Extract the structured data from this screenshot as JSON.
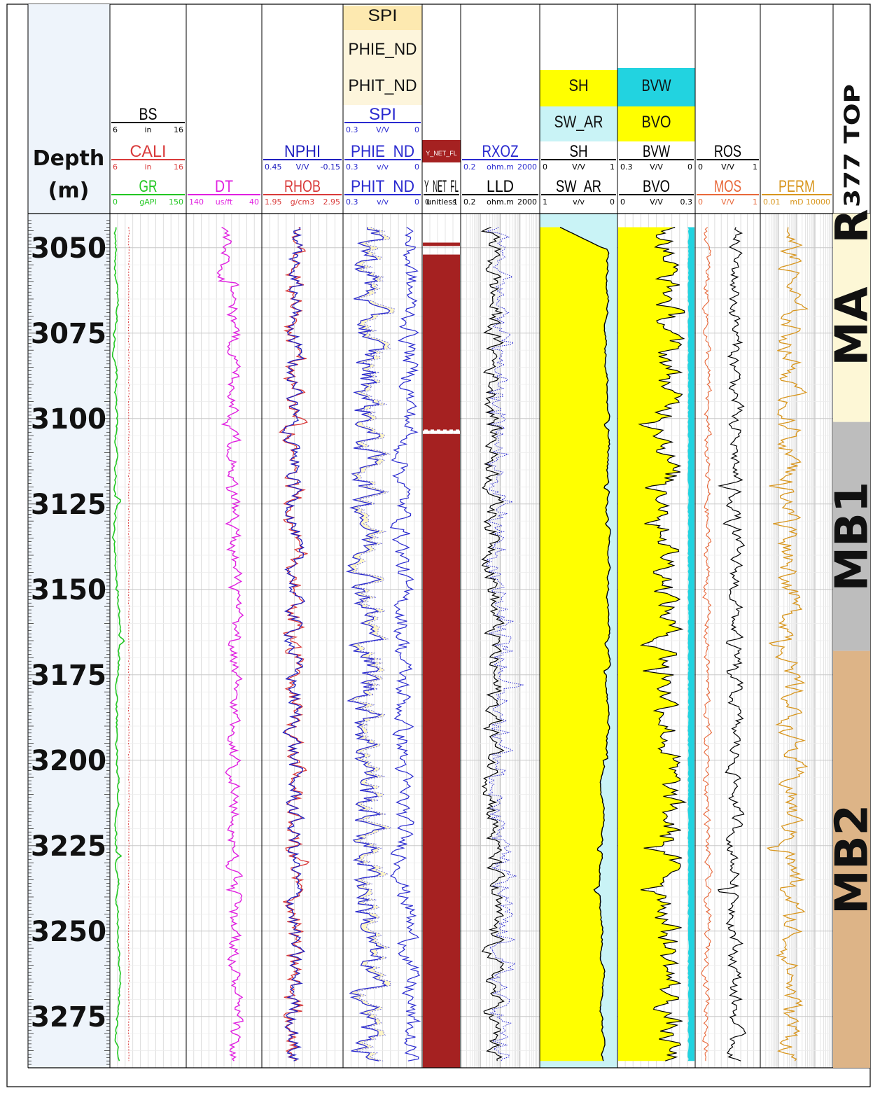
{
  "chart_data": {
    "type": "line",
    "depth_axis": {
      "title_line1": "Depth",
      "title_line2": "(m)",
      "range": [
        3040,
        3290
      ],
      "major_ticks": [
        3050,
        3075,
        3100,
        3125,
        3150,
        3175,
        3200,
        3225,
        3250,
        3275
      ],
      "major_tick_labels": [
        "3050",
        "3075",
        "3100",
        "3125",
        "3150",
        "3175",
        "3200",
        "3225",
        "3250",
        "3275"
      ]
    },
    "tracks": [
      {
        "id": "gr",
        "curves": [
          {
            "name": "BS",
            "color": "#000000",
            "min": "6",
            "unit": "in",
            "max": "16"
          },
          {
            "name": "CALI",
            "color": "#d93a3a",
            "min": "6",
            "unit": "in",
            "max": "16"
          },
          {
            "name": "GR",
            "color": "#22c722",
            "min": "0",
            "unit": "gAPI",
            "max": "150"
          }
        ]
      },
      {
        "id": "dt",
        "curves": [
          {
            "name": "DT",
            "color": "#e020e0",
            "min": "140",
            "unit": "us/ft",
            "max": "40"
          }
        ]
      },
      {
        "id": "density",
        "curves": [
          {
            "name": "NPHI",
            "color": "#2020c0",
            "min": "0.45",
            "unit": "V/V",
            "max": "-0.15"
          },
          {
            "name": "RHOB",
            "color": "#d93a3a",
            "min": "1.95",
            "unit": "g/cm3",
            "max": "2.95"
          }
        ]
      },
      {
        "id": "porosity",
        "fill_legend": [
          "SPI",
          "PHIE_ND",
          "PHIT_ND"
        ],
        "curves": [
          {
            "name": "SPI",
            "color": "#2a2ad0",
            "min": "0.3",
            "unit": "V/V",
            "max": "0"
          },
          {
            "name": "PHIE_ND",
            "color": "#2a2ad0",
            "min": "0.3",
            "unit": "v/v",
            "max": "0"
          },
          {
            "name": "PHIT_ND",
            "color": "#2a2ad0",
            "min": "0.3",
            "unit": "v/v",
            "max": "0"
          }
        ]
      },
      {
        "id": "flag",
        "fill_legend": [
          "Y_NET_FL"
        ],
        "curves": [
          {
            "name": "Y_NET_FL",
            "color": "#000000",
            "min": "0",
            "unit": "unitless",
            "max": "1"
          }
        ]
      },
      {
        "id": "resistivity",
        "curves": [
          {
            "name": "RXOZ",
            "color": "#2a2ad0",
            "min": "0.2",
            "unit": "ohm.m",
            "max": "2000"
          },
          {
            "name": "LLD",
            "color": "#000000",
            "min": "0.2",
            "unit": "ohm.m",
            "max": "2000"
          }
        ]
      },
      {
        "id": "saturation",
        "fill_legend": [
          "SH",
          "SW_AR"
        ],
        "curves": [
          {
            "name": "SH",
            "color": "#000000",
            "min": "0",
            "unit": "V/V",
            "max": "1"
          },
          {
            "name": "SW_AR",
            "color": "#000000",
            "min": "1",
            "unit": "v/v",
            "max": "0"
          }
        ]
      },
      {
        "id": "bulk-volume",
        "fill_legend": [
          "BVW",
          "BVO"
        ],
        "curves": [
          {
            "name": "BVW",
            "color": "#000000",
            "min": "0.3",
            "unit": "V/V",
            "max": "0"
          },
          {
            "name": "BVO",
            "color": "#000000",
            "min": "0",
            "unit": "V/V",
            "max": "0.3"
          }
        ]
      },
      {
        "id": "mos",
        "curves": [
          {
            "name": "ROS",
            "color": "#000000",
            "min": "0",
            "unit": "V/V",
            "max": "1"
          },
          {
            "name": "MOS",
            "color": "#e8683a",
            "min": "0",
            "unit": "V/V",
            "max": "1"
          }
        ]
      },
      {
        "id": "perm",
        "curves": [
          {
            "name": "PERM",
            "color": "#d8961e",
            "min": "0.01",
            "unit": "mD",
            "max": "10000"
          }
        ]
      }
    ],
    "net_flag_intervals": [
      {
        "top": 3048.5,
        "base": 3049.5
      },
      {
        "top": 3052,
        "base": 3103.5
      },
      {
        "top": 3104.5,
        "base": 3290
      }
    ],
    "zones": {
      "title": "377 TOP",
      "items": [
        {
          "name": "MA",
          "top": 3045,
          "base": 3101,
          "color": "#fdf7d6"
        },
        {
          "name": "MB1",
          "top": 3101,
          "base": 3168,
          "color": "#bdbdbd"
        },
        {
          "name": "MB2",
          "top": 3168,
          "base": 3290,
          "color": "#ddb487"
        }
      ]
    }
  }
}
